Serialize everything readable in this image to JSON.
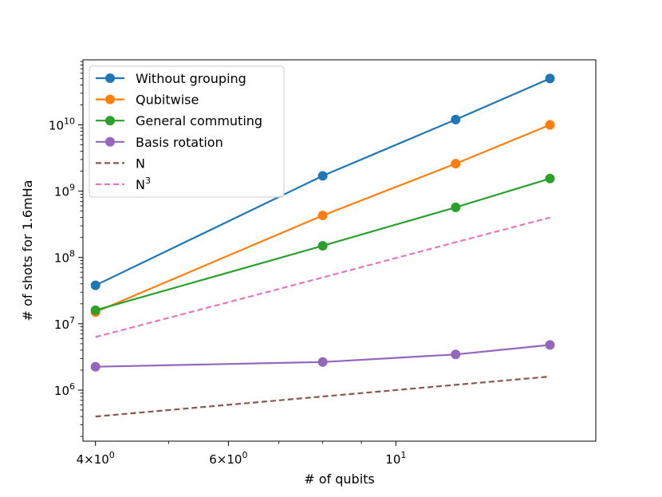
{
  "chart_data": {
    "type": "line",
    "xscale": "log",
    "yscale": "log",
    "xlabel": "# of qubits",
    "ylabel": "# of shots for 1.6mHa",
    "xlim": [
      3.85,
      18.4
    ],
    "ylim_log10": [
      5.23,
      10.98
    ],
    "x": [
      4,
      8,
      12,
      16
    ],
    "x_ticks": [
      {
        "value": 4,
        "mantissa": "4",
        "exponent": "0"
      },
      {
        "value": 6,
        "mantissa": "6",
        "exponent": "0"
      },
      {
        "value": 10,
        "mantissa": "10",
        "exponent": "1"
      }
    ],
    "x_minor_ticks": [
      5,
      7,
      8,
      9
    ],
    "y_ticks": [
      {
        "value": 6,
        "mantissa": "10",
        "exponent": "6"
      },
      {
        "value": 7,
        "mantissa": "10",
        "exponent": "7"
      },
      {
        "value": 8,
        "mantissa": "10",
        "exponent": "8"
      },
      {
        "value": 9,
        "mantissa": "10",
        "exponent": "9"
      },
      {
        "value": 10,
        "mantissa": "10",
        "exponent": "10"
      }
    ],
    "series": [
      {
        "name": "Without grouping",
        "color": "#1f77b4",
        "style": "solid",
        "marker": true,
        "values": [
          38000000,
          1700000000,
          12000000000,
          50000000000
        ]
      },
      {
        "name": "Qubitwise",
        "color": "#ff7f0e",
        "style": "solid",
        "marker": true,
        "values": [
          15000000,
          430000000,
          2600000000,
          10000000000
        ]
      },
      {
        "name": "General commuting",
        "color": "#2ca02c",
        "style": "solid",
        "marker": true,
        "values": [
          16000000,
          150000000,
          570000000,
          1550000000
        ]
      },
      {
        "name": "Basis rotation",
        "color": "#9467bd",
        "style": "solid",
        "marker": true,
        "values": [
          2250000,
          2650000,
          3450000,
          4800000
        ]
      },
      {
        "name": "N",
        "color": "#8c564b",
        "style": "dashed",
        "marker": false,
        "values": [
          400000,
          800000,
          1200000,
          1600000
        ]
      },
      {
        "name": "N",
        "name_sup": "3",
        "color": "#e377c2",
        "style": "dashed",
        "marker": false,
        "values": [
          6300000,
          50000000,
          170000000,
          400000000
        ]
      }
    ],
    "legend_position": "top-left"
  }
}
